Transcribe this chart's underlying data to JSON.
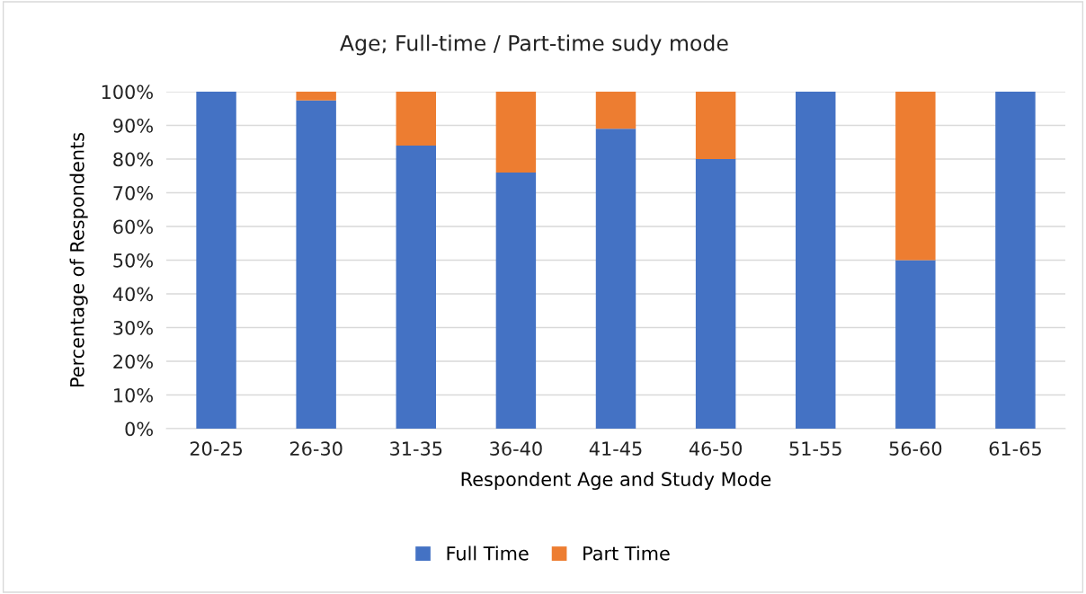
{
  "chart_data": {
    "type": "bar",
    "stacked": true,
    "title": "Age; Full-time / Part-time sudy mode",
    "xlabel": "Respondent Age and Study Mode",
    "ylabel": "Percentage of Respondents",
    "categories": [
      "20-25",
      "26-30",
      "31-35",
      "36-40",
      "41-45",
      "46-50",
      "51-55",
      "56-60",
      "61-65"
    ],
    "series": [
      {
        "name": "Full Time",
        "color": "#4472c4",
        "values": [
          100,
          97.4,
          84,
          76,
          89,
          80,
          100,
          50,
          100
        ]
      },
      {
        "name": "Part Time",
        "color": "#ed7d31",
        "values": [
          0,
          2.6,
          16,
          24,
          11,
          20,
          0,
          50,
          0
        ]
      }
    ],
    "ylim": [
      0,
      100
    ],
    "yticks": [
      {
        "value": 0,
        "label": "0%"
      },
      {
        "value": 10,
        "label": "10%"
      },
      {
        "value": 20,
        "label": "20%"
      },
      {
        "value": 30,
        "label": "30%"
      },
      {
        "value": 40,
        "label": "40%"
      },
      {
        "value": 50,
        "label": "50%"
      },
      {
        "value": 60,
        "label": "60%"
      },
      {
        "value": 70,
        "label": "70%"
      },
      {
        "value": 80,
        "label": "80%"
      },
      {
        "value": 90,
        "label": "90%"
      },
      {
        "value": 100,
        "label": "100%"
      }
    ],
    "grid": "y",
    "legend": "bottom"
  }
}
